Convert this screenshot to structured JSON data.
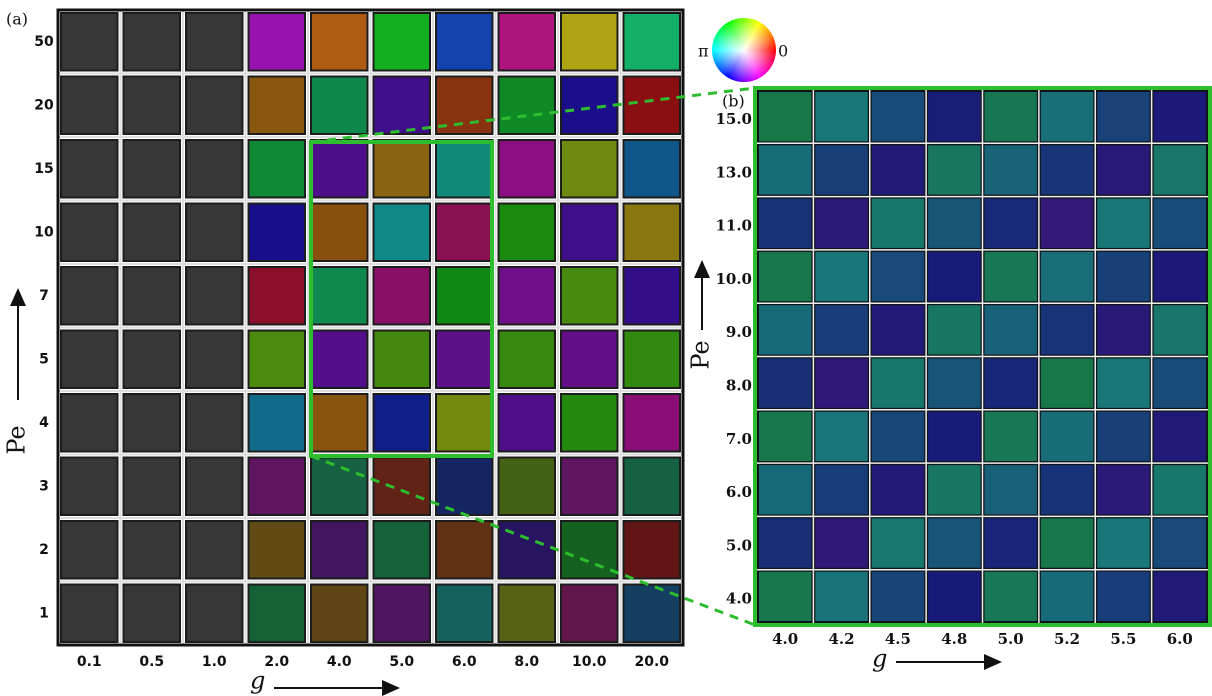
{
  "panel_a": {
    "label": "(a)",
    "x_label": "g",
    "y_label": "Pe",
    "columns": [
      "0.1",
      "0.5",
      "1.0",
      "2.0",
      "4.0",
      "5.0",
      "6.0",
      "8.0",
      "10.0",
      "20.0"
    ],
    "rows": [
      "50",
      "20",
      "15",
      "10",
      "7",
      "5",
      "4",
      "3",
      "2",
      "1"
    ]
  },
  "panel_b": {
    "label": "(b)",
    "x_label": "g",
    "y_label": "Pe",
    "columns": [
      "4.0",
      "4.2",
      "4.5",
      "4.8",
      "5.0",
      "5.2",
      "5.5",
      "6.0"
    ],
    "rows": [
      "15.0",
      "13.0",
      "11.0",
      "10.0",
      "9.0",
      "8.0",
      "7.0",
      "6.0",
      "5.0",
      "4.0"
    ]
  },
  "color_wheel": {
    "left": "π",
    "right": "0"
  }
}
